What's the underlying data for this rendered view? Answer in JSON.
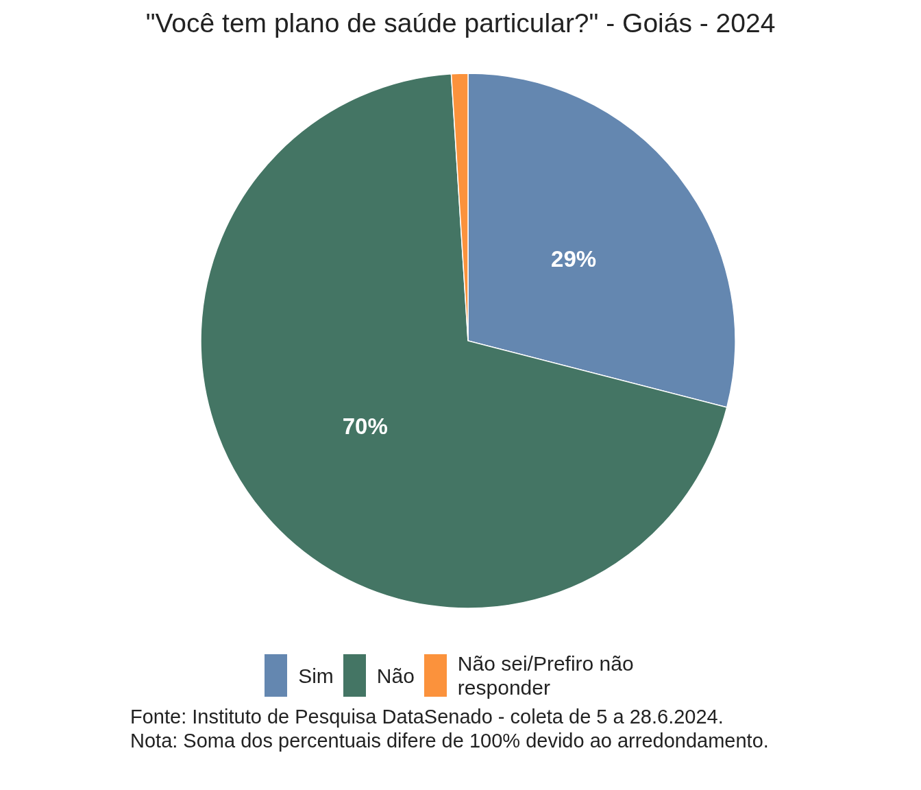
{
  "chart_data": {
    "type": "pie",
    "title": "\"Você tem plano de saúde particular?\" - Goiás - 2024",
    "categories": [
      "Sim",
      "Não",
      "Não sei/Prefiro não responder"
    ],
    "values": [
      29,
      70,
      1
    ],
    "colors": [
      "#6487b0",
      "#447564",
      "#fb923c"
    ],
    "value_labels": [
      "29%",
      "70%",
      null
    ],
    "legend": "bottom",
    "annotations": [
      "Fonte: Instituto de Pesquisa DataSenado - coleta de 5 a 28.6.2024.",
      "Nota: Soma dos percentuais difere de 100% devido ao arredondamento."
    ]
  }
}
